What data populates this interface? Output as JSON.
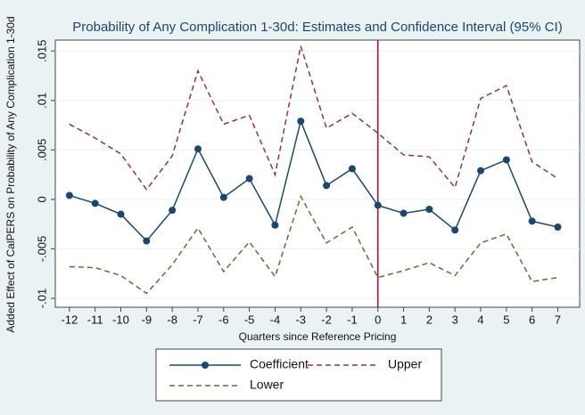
{
  "chart_data": {
    "type": "line",
    "title": "Probability of Any Complication 1-30d: Estimates and Confidence Interval (95% CI)",
    "x_label": "Quarters since Reference Pricing",
    "y_label": "Added Effect of CalPERS on Probability of Any Complication 1-30d",
    "x": [
      -12,
      -11,
      -10,
      -9,
      -8,
      -7,
      -6,
      -5,
      -4,
      -3,
      -2,
      -1,
      0,
      1,
      2,
      3,
      4,
      5,
      6,
      7
    ],
    "series": [
      {
        "name": "Coefficient",
        "color": "#1a476f",
        "style": "solid",
        "marker": true,
        "values": [
          0.0004,
          -0.0004,
          -0.0015,
          -0.0042,
          -0.0011,
          0.0051,
          0.0002,
          0.0021,
          -0.0026,
          0.0079,
          0.0014,
          0.0031,
          -0.0006,
          -0.0014,
          -0.001,
          -0.0031,
          0.0029,
          0.004,
          -0.0022,
          -0.0028
        ]
      },
      {
        "name": "Upper",
        "color": "#90353b",
        "style": "dashed",
        "marker": false,
        "values": [
          0.0076,
          0.0062,
          0.0046,
          0.001,
          0.0044,
          0.013,
          0.0076,
          0.0085,
          0.0025,
          0.0155,
          0.0072,
          0.0087,
          0.0067,
          0.0045,
          0.0043,
          0.0012,
          0.0102,
          0.0115,
          0.0038,
          0.0021
        ]
      },
      {
        "name": "Lower",
        "color": "#55752f",
        "style": "dashed",
        "marker": false,
        "values": [
          -0.0068,
          -0.0069,
          -0.0077,
          -0.0095,
          -0.0066,
          -0.0029,
          -0.0073,
          -0.0043,
          -0.0078,
          0.0003,
          -0.0044,
          -0.0028,
          -0.0079,
          -0.0072,
          -0.0064,
          -0.0077,
          -0.0044,
          -0.0035,
          -0.0083,
          -0.0079
        ]
      }
    ],
    "xlim": [
      -12.55,
      7.85
    ],
    "xticks": [
      -12,
      -11,
      -10,
      -9,
      -8,
      -7,
      -6,
      -5,
      -4,
      -3,
      -2,
      -1,
      0,
      1,
      2,
      3,
      4,
      5,
      6,
      7
    ],
    "ylim": [
      -0.0109,
      0.0161
    ],
    "yticks": [
      {
        "value": -0.01,
        "label": "-.01"
      },
      {
        "value": -0.005,
        "label": "-.005"
      },
      0,
      {
        "value": 0.005,
        "label": ".005"
      },
      {
        "value": 0.01,
        "label": ".01"
      },
      {
        "value": 0.015,
        "label": ".015"
      }
    ],
    "grid": true,
    "reference_line": {
      "x": 0,
      "color": "#cc0022"
    }
  }
}
